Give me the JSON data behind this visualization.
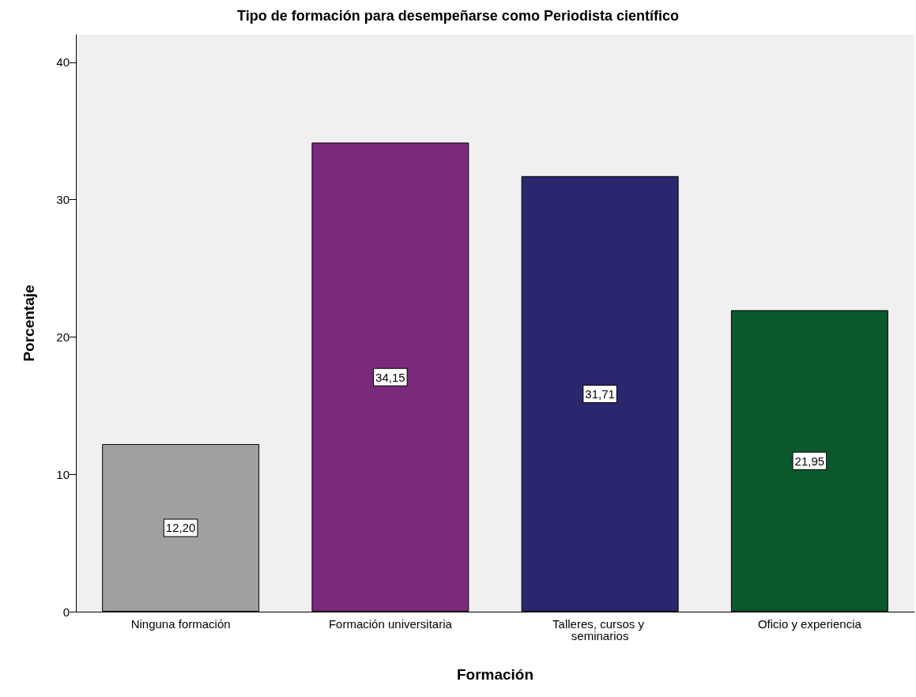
{
  "chart_data": {
    "type": "bar",
    "title": "Tipo de formación para desempeñarse como Periodista científico",
    "xlabel": "Formación",
    "ylabel": "Porcentaje",
    "categories": [
      "Ninguna formación",
      "Formación universitaria",
      "Talleres, cursos y seminarios",
      "Oficio y experiencia"
    ],
    "values": [
      12.2,
      34.15,
      31.71,
      21.95
    ],
    "colors": [
      "#a0a0a0",
      "#7b297b",
      "#29286f",
      "#0b582d"
    ],
    "value_labels": [
      "12,20",
      "34,15",
      "31,71",
      "21,95"
    ],
    "ylim": [
      0,
      42
    ],
    "yticks": [
      0,
      10,
      20,
      30,
      40
    ],
    "grid": false
  }
}
